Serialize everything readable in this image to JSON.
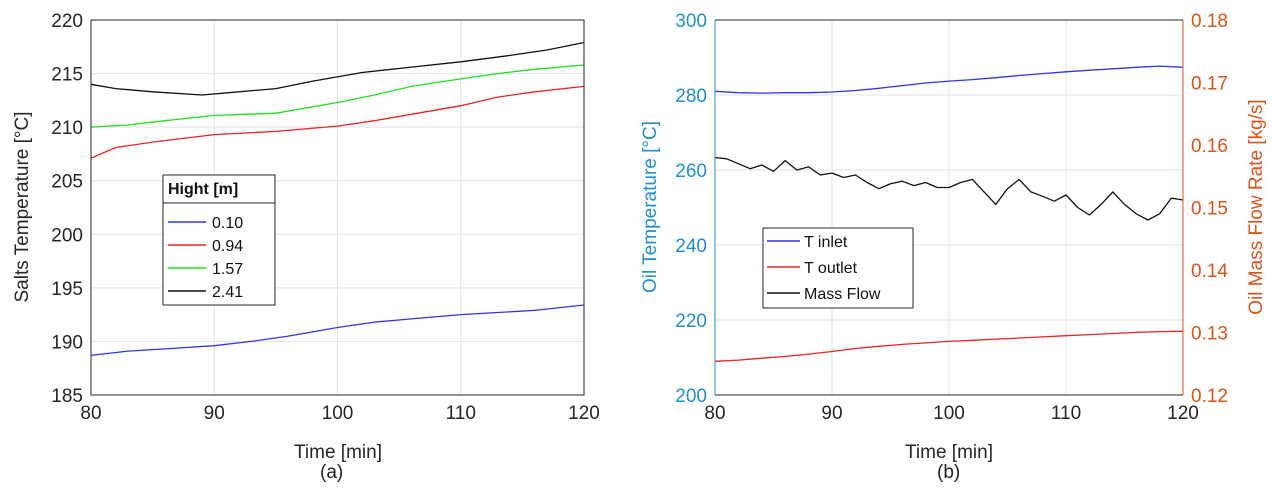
{
  "chart_data": [
    {
      "type": "line",
      "caption": "(a)",
      "xlabel": "Time [min]",
      "ylabel": "Salts Temperature [°C]",
      "xlim": [
        80,
        120
      ],
      "ylim": [
        185,
        220
      ],
      "xticks": [
        80,
        90,
        100,
        110,
        120
      ],
      "yticks": [
        185,
        190,
        195,
        200,
        205,
        210,
        215,
        220
      ],
      "grid": true,
      "legend": {
        "title": "Hight [m]",
        "placement": "center-left"
      },
      "series": [
        {
          "name": "0.10",
          "color": "#3333ee",
          "x": [
            80,
            83,
            86,
            90,
            93,
            96,
            100,
            103,
            106,
            110,
            113,
            116,
            120
          ],
          "y": [
            188.7,
            189.1,
            189.3,
            189.6,
            190.0,
            190.5,
            191.3,
            191.8,
            192.1,
            192.5,
            192.7,
            192.9,
            193.4
          ]
        },
        {
          "name": "0.94",
          "color": "#ee2222",
          "x": [
            80,
            82,
            85,
            90,
            95,
            100,
            103,
            106,
            110,
            113,
            116,
            120
          ],
          "y": [
            207.1,
            208.1,
            208.6,
            209.3,
            209.6,
            210.1,
            210.6,
            211.2,
            212.0,
            212.8,
            213.3,
            213.8
          ]
        },
        {
          "name": "1.57",
          "color": "#22dd22",
          "x": [
            80,
            83,
            86,
            90,
            95,
            100,
            103,
            106,
            110,
            113,
            116,
            120
          ],
          "y": [
            210.0,
            210.2,
            210.6,
            211.1,
            211.3,
            212.3,
            213.0,
            213.8,
            214.5,
            215.0,
            215.4,
            215.8
          ]
        },
        {
          "name": "2.41",
          "color": "#111111",
          "x": [
            80,
            82,
            85,
            89,
            92,
            95,
            98,
            102,
            106,
            110,
            114,
            117,
            120
          ],
          "y": [
            214.0,
            213.6,
            213.3,
            213.0,
            213.3,
            213.6,
            214.3,
            215.1,
            215.6,
            216.1,
            216.7,
            217.2,
            217.9
          ]
        }
      ]
    },
    {
      "type": "line",
      "caption": "(b)",
      "xlabel": "Time [min]",
      "ylabel": "Oil Temperature [°C]",
      "ylabel_right": "Oil Mass Flow Rate [kg/s]",
      "xlim": [
        80,
        120
      ],
      "ylim": [
        200,
        300
      ],
      "ylim_right": [
        0.12,
        0.18
      ],
      "xticks": [
        80,
        90,
        100,
        110,
        120
      ],
      "yticks": [
        200,
        220,
        240,
        260,
        280,
        300
      ],
      "yticks_right": [
        "0.12",
        "0.13",
        "0.14",
        "0.15",
        "0.16",
        "0.17",
        "0.18"
      ],
      "left_axis_color": "#1f8fd0",
      "right_axis_color": "#d9541a",
      "grid": true,
      "legend": {
        "placement": "center-left"
      },
      "series": [
        {
          "name": "T inlet",
          "color": "#3333ee",
          "axis": "left",
          "x": [
            80,
            82,
            84,
            86,
            88,
            90,
            92,
            94,
            96,
            98,
            100,
            102,
            104,
            106,
            108,
            110,
            112,
            114,
            116,
            118,
            120
          ],
          "y": [
            281.0,
            280.6,
            280.5,
            280.6,
            280.6,
            280.8,
            281.2,
            281.8,
            282.5,
            283.2,
            283.7,
            284.1,
            284.6,
            285.2,
            285.7,
            286.2,
            286.6,
            287.0,
            287.4,
            287.7,
            287.4
          ]
        },
        {
          "name": "T outlet",
          "color": "#ee2222",
          "axis": "left",
          "x": [
            80,
            82,
            84,
            86,
            88,
            90,
            92,
            94,
            96,
            98,
            100,
            102,
            104,
            106,
            108,
            110,
            112,
            114,
            116,
            118,
            120
          ],
          "y": [
            209.0,
            209.3,
            209.8,
            210.3,
            210.9,
            211.6,
            212.4,
            213.0,
            213.5,
            213.9,
            214.3,
            214.6,
            214.9,
            215.2,
            215.5,
            215.8,
            216.1,
            216.4,
            216.7,
            216.9,
            217.0
          ]
        },
        {
          "name": "Mass Flow",
          "color": "#111111",
          "axis": "right",
          "x": [
            80,
            81,
            82,
            83,
            84,
            85,
            86,
            87,
            88,
            89,
            90,
            91,
            92,
            93,
            94,
            95,
            96,
            97,
            98,
            99,
            100,
            101,
            102,
            103,
            104,
            105,
            106,
            107,
            108,
            109,
            110,
            111,
            112,
            113,
            114,
            115,
            116,
            117,
            118,
            119,
            120
          ],
          "y": [
            0.158,
            0.1578,
            0.157,
            0.1562,
            0.1568,
            0.1558,
            0.1575,
            0.156,
            0.1565,
            0.1552,
            0.1555,
            0.1548,
            0.1552,
            0.154,
            0.153,
            0.1538,
            0.1542,
            0.1535,
            0.154,
            0.1532,
            0.1532,
            0.154,
            0.1545,
            0.1525,
            0.1505,
            0.153,
            0.1545,
            0.1525,
            0.1518,
            0.151,
            0.152,
            0.15,
            0.1488,
            0.1505,
            0.1525,
            0.1505,
            0.149,
            0.148,
            0.149,
            0.1515,
            0.1512
          ]
        }
      ]
    }
  ]
}
